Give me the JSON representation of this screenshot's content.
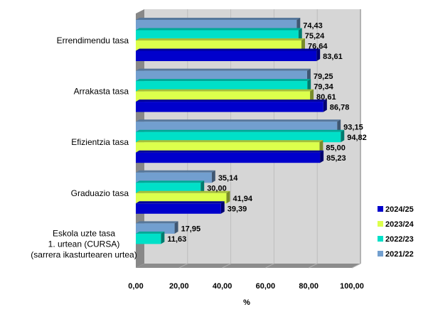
{
  "chart_data": {
    "type": "bar",
    "orientation": "horizontal",
    "style": "3d",
    "title": "",
    "xlabel": "%",
    "ylabel": "",
    "xlim": [
      0,
      100
    ],
    "xticks": [
      "0,00",
      "20,00",
      "40,00",
      "60,00",
      "80,00",
      "100,00"
    ],
    "grid": true,
    "legend_position": "right",
    "categories": [
      [
        "Errendimendu tasa"
      ],
      [
        "Arrakasta tasa"
      ],
      [
        "Efizientzia tasa"
      ],
      [
        "Graduazio tasa"
      ],
      [
        "Eskola uzte tasa",
        "1. urtean (CURSA)",
        "(sarrera ikasturtearen urtea)"
      ]
    ],
    "series": [
      {
        "name": "2021/22",
        "color": "#729fcf",
        "values": [
          74.43,
          79.25,
          93.15,
          35.14,
          17.95
        ],
        "labels": [
          "74,43",
          "79,25",
          "93,15",
          "35,14",
          "17,95"
        ]
      },
      {
        "name": "2022/23",
        "color": "#00e0c8",
        "values": [
          75.24,
          79.34,
          94.82,
          30.0,
          11.63
        ],
        "labels": [
          "75,24",
          "79,34",
          "94,82",
          "30,00",
          "11,63"
        ]
      },
      {
        "name": "2023/24",
        "color": "#dcff4c",
        "values": [
          76.64,
          80.61,
          85.0,
          41.94,
          null
        ],
        "labels": [
          "76,64",
          "80,61",
          "85,00",
          "41,94",
          ""
        ]
      },
      {
        "name": "2024/25",
        "color": "#0000cc",
        "values": [
          83.61,
          86.78,
          85.23,
          39.39,
          null
        ],
        "labels": [
          "83,61",
          "86,78",
          "85,23",
          "39,39",
          ""
        ]
      }
    ],
    "legend_order": [
      "2024/25",
      "2023/24",
      "2022/23",
      "2021/22"
    ]
  }
}
